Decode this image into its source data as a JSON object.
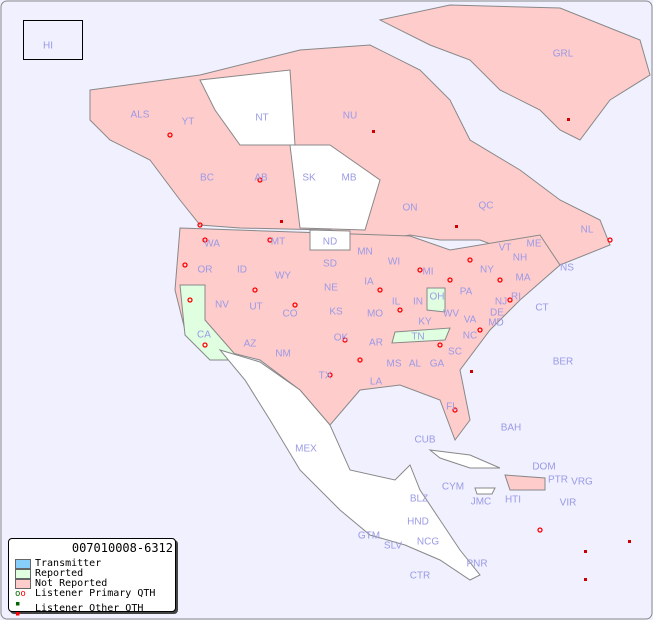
{
  "map": {
    "colors": {
      "transmitter": "#87cefa",
      "reported": "#e0ffe0",
      "not_reported": "#ffcccc",
      "unlisted": "#ffffff",
      "water": "#f0f0ff",
      "primary_qth": "#ff0000",
      "other_qth": "#cc0000"
    },
    "regions": [
      "HI",
      "ALS",
      "YT",
      "NT",
      "NU",
      "GRL",
      "BC",
      "AB",
      "SK",
      "MB",
      "ON",
      "QC",
      "NL",
      "NS",
      "WA",
      "OR",
      "ID",
      "MT",
      "ND",
      "SD",
      "WY",
      "NE",
      "MN",
      "WI",
      "IA",
      "IL",
      "IN",
      "OH",
      "MI",
      "PA",
      "NY",
      "VT",
      "ME",
      "NH",
      "MA",
      "RI",
      "CT",
      "NJ",
      "DE",
      "MD",
      "VA",
      "WV",
      "KY",
      "TN",
      "NC",
      "SC",
      "GA",
      "AL",
      "MS",
      "LA",
      "AR",
      "MO",
      "KS",
      "OK",
      "TX",
      "NM",
      "CO",
      "UT",
      "AZ",
      "NV",
      "CA",
      "FL",
      "BER",
      "BAH",
      "CUB",
      "CYM",
      "JMC",
      "HTI",
      "DOM",
      "PTR",
      "VRG",
      "VIR",
      "MEX",
      "BLZ",
      "GTM",
      "HND",
      "SLV",
      "NCG",
      "CTR",
      "PNR"
    ]
  },
  "legend": {
    "title": "007010008-6312",
    "items": [
      "Transmitter",
      "Reported",
      "Not Reported",
      "Listener Primary QTH",
      "Listener Other QTH"
    ]
  }
}
